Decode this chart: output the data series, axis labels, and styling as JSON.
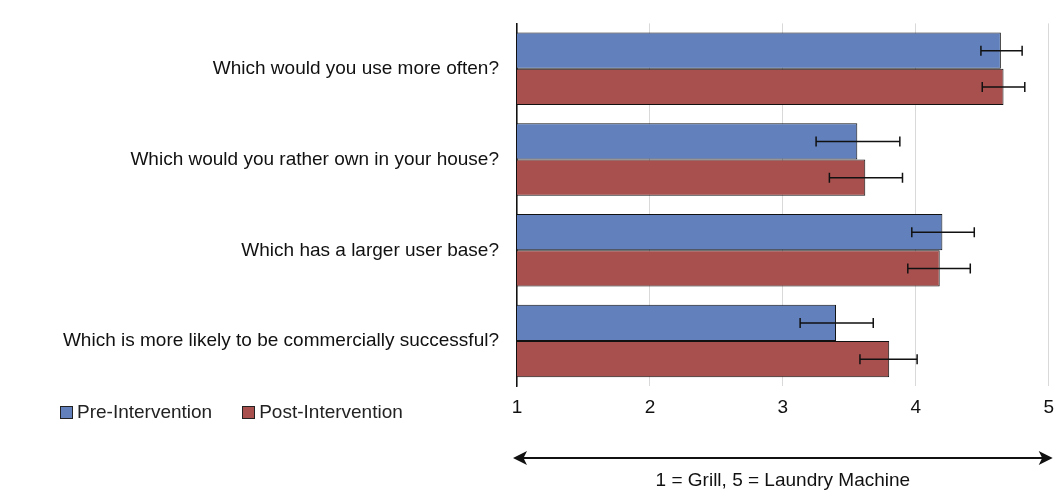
{
  "chart_data": {
    "type": "bar",
    "orientation": "horizontal",
    "xlabel": "1 = Grill, 5 = Laundry Machine",
    "categories": [
      "Which would you use more often?",
      "Which would you rather own in your house?",
      "Which has a larger user base?",
      "Which is more likely to be commercially successful?"
    ],
    "series": [
      {
        "name": "Pre-Intervention",
        "color": "#6180bc",
        "values": [
          4.64,
          3.56,
          4.2,
          3.4
        ],
        "errors": [
          [
            4.49,
            4.8
          ],
          [
            3.25,
            3.88
          ],
          [
            3.97,
            4.44
          ],
          [
            3.13,
            3.68
          ]
        ]
      },
      {
        "name": "Post-Intervention",
        "color": "#a8504e",
        "values": [
          4.66,
          3.62,
          4.18,
          3.8
        ],
        "errors": [
          [
            4.5,
            4.82
          ],
          [
            3.35,
            3.9
          ],
          [
            3.94,
            4.41
          ],
          [
            3.58,
            4.01
          ]
        ]
      }
    ],
    "xlim": [
      1,
      5
    ],
    "xticks": [
      1,
      2,
      3,
      4,
      5
    ],
    "grid": "x",
    "legend": "bottom left"
  }
}
